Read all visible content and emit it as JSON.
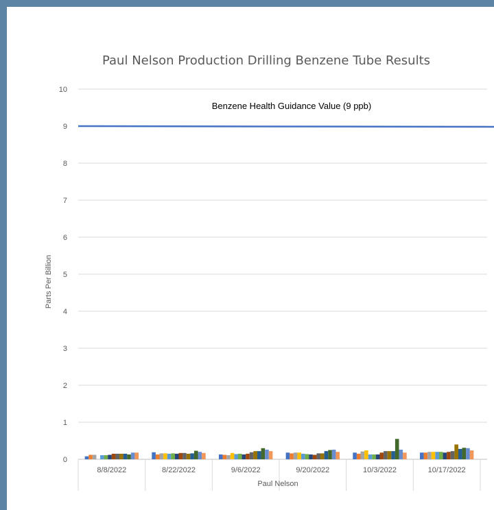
{
  "chart_data": {
    "type": "bar",
    "title": "Paul Nelson Production Drilling Benzene Tube Results",
    "ylabel": "Parts Per Billion",
    "xlabel": "Paul Nelson",
    "ylim": [
      0,
      10
    ],
    "yticks": [
      "0",
      "1",
      "2",
      "3",
      "4",
      "5",
      "6",
      "7",
      "8",
      "9",
      "10"
    ],
    "grid": true,
    "categories": [
      "8/8/2022",
      "8/22/2022",
      "9/6/2022",
      "9/20/2022",
      "10/3/2022",
      "10/17/2022"
    ],
    "series_colors": [
      "#4472c4",
      "#ed7d31",
      "#a5a5a5",
      "#ffc000",
      "#5b9bd5",
      "#70ad47",
      "#264478",
      "#9e480e",
      "#636363",
      "#997300",
      "#255e91",
      "#43682b",
      "#698ed0",
      "#f1975a"
    ],
    "values": [
      [
        0.08,
        0.12,
        0.12,
        null,
        0.11,
        0.11,
        0.12,
        0.15,
        0.15,
        0.15,
        0.15,
        0.13,
        0.18,
        0.18
      ],
      [
        0.19,
        0.13,
        0.16,
        0.16,
        0.15,
        0.16,
        0.15,
        0.17,
        0.17,
        0.15,
        0.16,
        0.23,
        0.2,
        0.17
      ],
      [
        0.13,
        0.12,
        0.11,
        0.17,
        0.14,
        0.15,
        0.13,
        0.15,
        0.19,
        0.22,
        0.22,
        0.3,
        0.26,
        0.22
      ],
      [
        0.18,
        0.16,
        0.18,
        0.18,
        0.15,
        0.14,
        0.13,
        0.12,
        0.16,
        0.16,
        0.22,
        0.25,
        0.26,
        0.2
      ],
      [
        0.18,
        0.15,
        0.21,
        0.24,
        0.13,
        0.13,
        0.13,
        0.18,
        0.22,
        0.22,
        0.22,
        0.55,
        0.26,
        0.18
      ],
      [
        0.18,
        0.18,
        0.2,
        0.2,
        0.2,
        0.2,
        0.18,
        0.2,
        0.22,
        0.4,
        0.28,
        0.31,
        0.3,
        0.24
      ]
    ],
    "reference_line": {
      "value": 9,
      "label": "Benzene Health Guidance Value (9 ppb)",
      "color": "#4472c4"
    }
  }
}
